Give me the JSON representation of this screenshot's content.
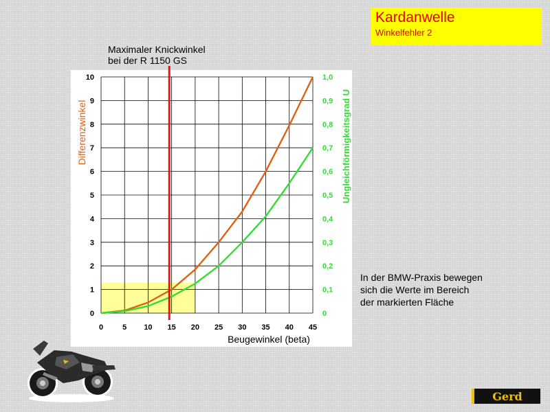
{
  "header": {
    "title": "Kardanwelle",
    "subtitle": "Winkelfehler 2"
  },
  "annotation": {
    "line1": "Maximaler Knickwinkel",
    "line2": "bei der R 1150 GS"
  },
  "note": {
    "line1": "In der BMW-Praxis bewegen",
    "line2": "sich die Werte im Bereich",
    "line3": "der markierten Fläche"
  },
  "logo": {
    "text": "Gerd",
    "icon": "gerd-logo-icon"
  },
  "image": {
    "icon": "bmw-motorcycle-icon"
  },
  "colors": {
    "title_bg": "#ffff00",
    "title_text": "#e60000",
    "left_axis": "#e06010",
    "right_axis": "#33dd33",
    "marker_line": "#ee1111",
    "highlight": "#ffff99"
  },
  "chart_data": {
    "type": "line",
    "xlabel": "Beugewinkel (beta)",
    "ylabel_left": "Differenzwinkel",
    "ylabel_right": "Ungleichförmigkeitsgrad U",
    "x_ticks": [
      "0",
      "5",
      "10",
      "15",
      "20",
      "25",
      "30",
      "35",
      "40",
      "45"
    ],
    "y_ticks_left": [
      "0",
      "1",
      "2",
      "3",
      "4",
      "5",
      "6",
      "7",
      "8",
      "9",
      "10"
    ],
    "y_ticks_right": [
      "0",
      "0,1",
      "0,2",
      "0,3",
      "0,4",
      "0,5",
      "0,6",
      "0,7",
      "0,8",
      "0,9",
      "1,0"
    ],
    "xlim": [
      0,
      45
    ],
    "ylim_left": [
      0,
      10
    ],
    "ylim_right": [
      0,
      1.0
    ],
    "grid": true,
    "x": [
      0,
      5,
      10,
      15,
      20,
      25,
      30,
      35,
      40,
      45
    ],
    "series": [
      {
        "axis": "left",
        "color": "#e06010",
        "values": [
          0,
          0.11,
          0.45,
          1.0,
          1.85,
          3.0,
          4.3,
          6.0,
          7.95,
          10.0
        ]
      },
      {
        "axis": "right",
        "color": "#33dd33",
        "values": [
          0,
          0.008,
          0.03,
          0.07,
          0.125,
          0.2,
          0.3,
          0.41,
          0.55,
          0.7
        ]
      }
    ],
    "vline": {
      "x": 14.5
    },
    "highlight_region": {
      "x": [
        0,
        20
      ],
      "y_left": [
        0,
        1.3
      ]
    }
  }
}
